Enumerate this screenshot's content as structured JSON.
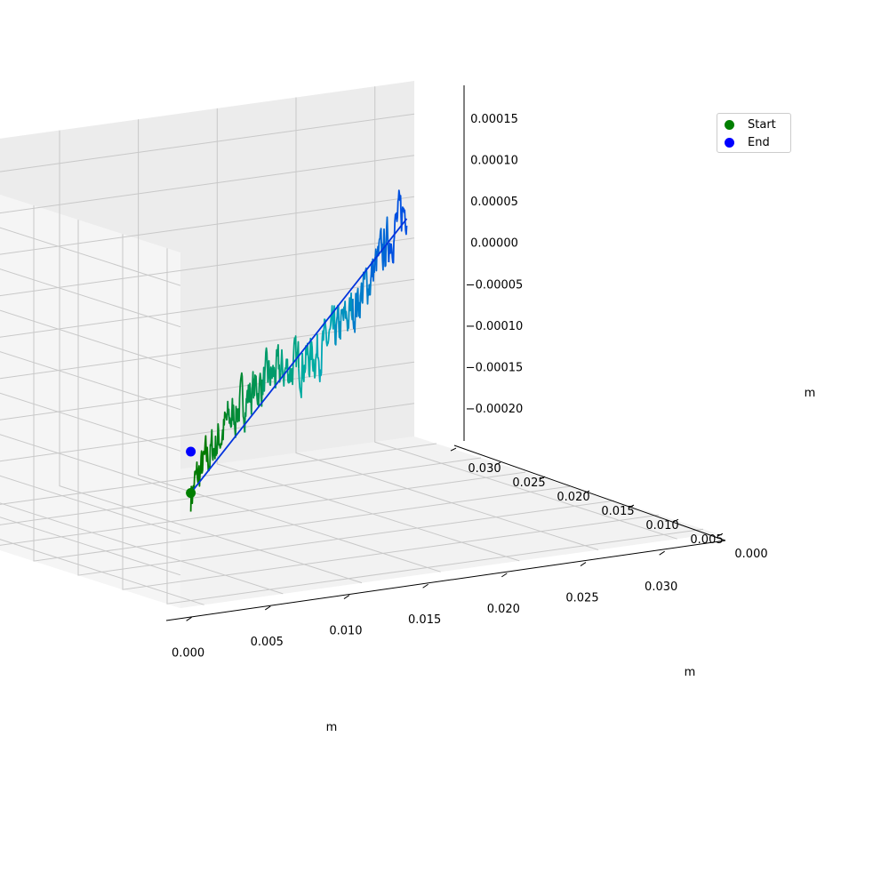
{
  "chart_data": {
    "type": "line",
    "projection": "3d",
    "xlabel": "m",
    "ylabel": "m",
    "zlabel": "m",
    "xlim": [
      -0.0015,
      0.0325
    ],
    "ylim": [
      -0.0015,
      0.0325
    ],
    "zlim": [
      -0.00024,
      0.00019
    ],
    "x_ticks": [
      "0.000",
      "0.005",
      "0.010",
      "0.015",
      "0.020",
      "0.025",
      "0.030"
    ],
    "y_ticks": [
      "0.000",
      "0.005",
      "0.010",
      "0.015",
      "0.020",
      "0.025",
      "0.030"
    ],
    "z_ticks": [
      "−0.00020",
      "−0.00015",
      "−0.00010",
      "−0.00005",
      "0.00000",
      "0.00005",
      "0.00010",
      "0.00015"
    ],
    "grid": true,
    "legend_position": "upper right",
    "series": [
      {
        "kind": "trajectory",
        "x_start": 0.0,
        "x_end": 0.0314,
        "y_start": 0.0,
        "y_end": 0.0314,
        "z_start": -0.00011,
        "z_end": 3e-05,
        "color_start": "#007a00",
        "color_mid": "#00b0b0",
        "color_end": "#0050e0"
      },
      {
        "kind": "closing-line",
        "from": [
          0.0314,
          0.0314,
          3e-05
        ],
        "to": [
          0.0,
          0.0,
          -0.00011
        ],
        "color": "#0033dd"
      }
    ],
    "markers": [
      {
        "name": "Start",
        "color": "#007f00",
        "x": 0.0,
        "y": 0.0,
        "z": -0.00011
      },
      {
        "name": "End",
        "color": "#0000ff",
        "x": 0.0,
        "y": 0.0,
        "z": -6e-05
      }
    ]
  },
  "legend": {
    "items": [
      {
        "label": "Start",
        "color": "#007f00"
      },
      {
        "label": "End",
        "color": "#0000ff"
      }
    ]
  }
}
